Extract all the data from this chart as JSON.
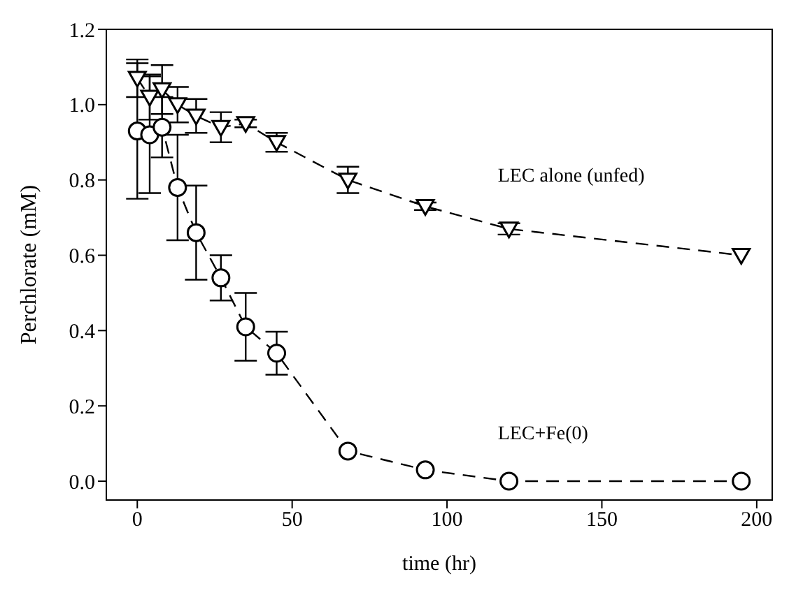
{
  "chart_data": {
    "type": "line",
    "xlabel": "time (hr)",
    "ylabel": "Perchlorate (mM)",
    "xlim": [
      -10,
      205
    ],
    "xticks": [
      0,
      50,
      100,
      150,
      200
    ],
    "ylim": [
      -0.05,
      1.2
    ],
    "yticks": [
      {
        "value": 0,
        "label": "0.0"
      },
      0.2,
      0.4,
      0.6,
      0.8,
      {
        "value": 1,
        "label": "1.0"
      },
      1.2
    ],
    "line_style": "dashed",
    "series": [
      {
        "name": "LEC alone (unfed)",
        "marker": "triangle",
        "color": "#000000",
        "x": [
          0,
          4,
          8,
          13,
          19,
          27,
          35,
          45,
          68,
          93,
          120,
          195
        ],
        "values": [
          1.07,
          1.02,
          1.04,
          1.0,
          0.97,
          0.94,
          0.95,
          0.9,
          0.8,
          0.73,
          0.67,
          0.6
        ],
        "errors": [
          0.05,
          0.06,
          0.065,
          0.047,
          0.045,
          0.04,
          0.01,
          0.025,
          0.035,
          0.01,
          0.015,
          null
        ]
      },
      {
        "name": "LEC+Fe(0)",
        "marker": "circle",
        "color": "#000000",
        "x": [
          0,
          4,
          8,
          13,
          19,
          27,
          35,
          45,
          68,
          93,
          120,
          195
        ],
        "values": [
          0.93,
          0.92,
          0.94,
          0.78,
          0.66,
          0.54,
          0.41,
          0.34,
          0.08,
          0.03,
          0.0,
          0.0
        ],
        "errors": [
          0.18,
          0.155,
          0.08,
          0.14,
          0.125,
          0.06,
          0.09,
          0.057,
          null,
          null,
          null,
          null
        ]
      }
    ]
  }
}
